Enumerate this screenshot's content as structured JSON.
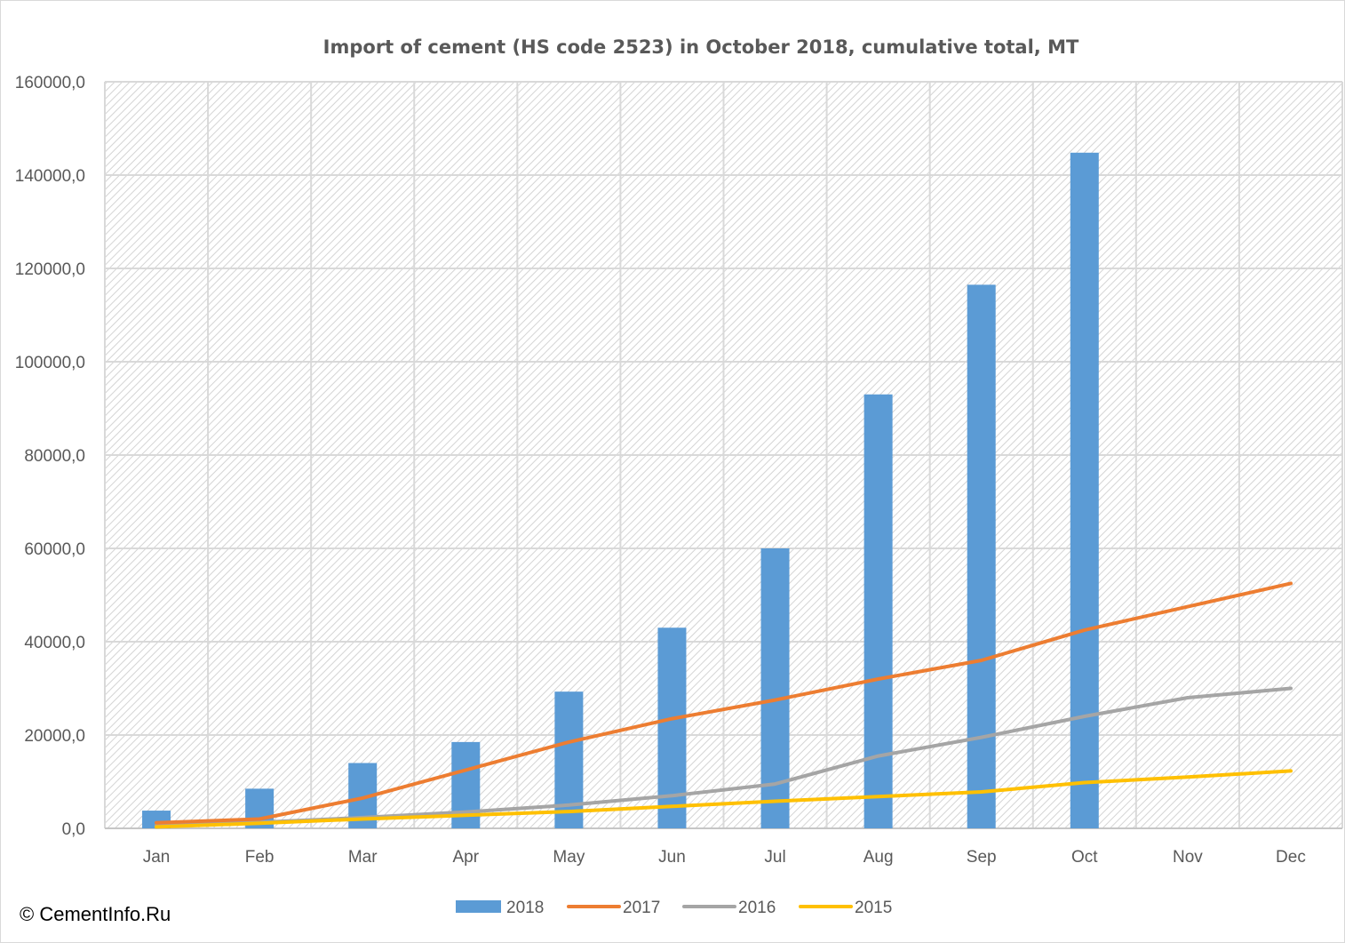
{
  "chart_data": {
    "type": "bar",
    "title": "Import of cement (HS code 2523) in October 2018, cumulative total, MT",
    "xlabel": "",
    "ylabel": "",
    "ylim": [
      0,
      160000
    ],
    "yticks": [
      0,
      20000,
      40000,
      60000,
      80000,
      100000,
      120000,
      140000,
      160000
    ],
    "ytick_labels": [
      "0,0",
      "20000,0",
      "40000,0",
      "60000,0",
      "80000,0",
      "100000,0",
      "120000,0",
      "140000,0",
      "160000,0"
    ],
    "categories": [
      "Jan",
      "Feb",
      "Mar",
      "Apr",
      "May",
      "Jun",
      "Jul",
      "Aug",
      "Sep",
      "Oct",
      "Nov",
      "Dec"
    ],
    "grid": true,
    "legend_position": "bottom",
    "series": [
      {
        "name": "2018",
        "kind": "bar",
        "color": "#5b9bd5",
        "values": [
          3800,
          8500,
          14000,
          18500,
          29300,
          43000,
          60000,
          93000,
          116500,
          144800,
          null,
          null
        ]
      },
      {
        "name": "2017",
        "kind": "line",
        "color": "#ed7d31",
        "values": [
          1200,
          2000,
          6500,
          12500,
          18500,
          23500,
          27500,
          32000,
          36000,
          42500,
          47500,
          52500
        ]
      },
      {
        "name": "2016",
        "kind": "line",
        "color": "#a5a5a5",
        "values": [
          600,
          1300,
          2300,
          3500,
          5000,
          7000,
          9500,
          15500,
          19500,
          24000,
          28000,
          30000
        ]
      },
      {
        "name": "2015",
        "kind": "line",
        "color": "#ffc000",
        "values": [
          300,
          1100,
          2000,
          2800,
          3600,
          4700,
          5800,
          6800,
          7800,
          9800,
          11000,
          12300
        ]
      }
    ]
  },
  "credit": "© CementInfo.Ru"
}
